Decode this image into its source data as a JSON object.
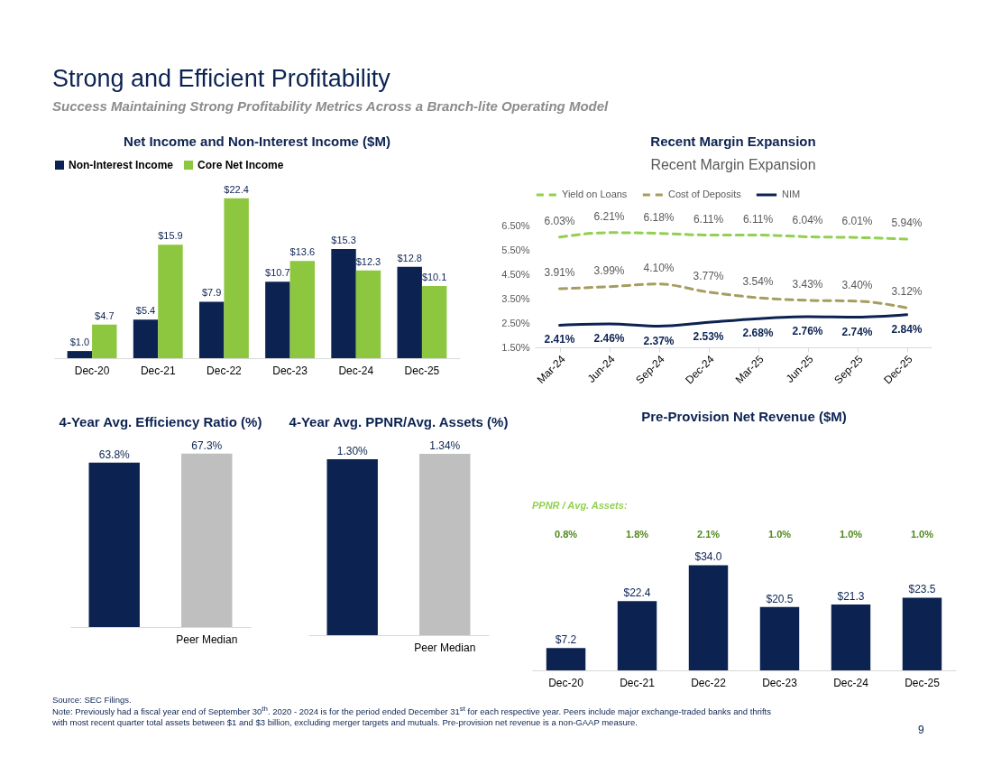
{
  "chart_data": [
    {
      "type": "other",
      "title": "Strong and Efficient Profitability",
      "subtitle": "Success Maintaining Strong Profitability Metrics Across a Branch-lite Operating Model"
    },
    {
      "type": "bar",
      "title": "Net Income and Non-Interest Income ($M)",
      "categories": [
        "Dec-20",
        "Dec-21",
        "Dec-22",
        "Dec-23",
        "Dec-24",
        "Dec-25"
      ],
      "legend": "top",
      "series": [
        {
          "name": "Non-Interest Income",
          "color": "#0c2352",
          "values": [
            1.0,
            5.4,
            7.9,
            10.7,
            15.3,
            12.8
          ],
          "value_labels": [
            "$1.0",
            "$5.4",
            "$7.9",
            "$10.7",
            "$15.3",
            "$12.8"
          ]
        },
        {
          "name": "Core Net Income",
          "color": "#8dc63f",
          "values": [
            4.7,
            15.9,
            22.4,
            13.6,
            12.3,
            10.1
          ],
          "value_labels": [
            "$4.7",
            "$15.9",
            "$22.4",
            "$13.6",
            "$12.3",
            "$10.1"
          ]
        }
      ]
    },
    {
      "type": "line",
      "title": "Recent Margin Expansion",
      "subtitle": "Recent Margin Expansion",
      "categories": [
        "Mar-24",
        "Jun-24",
        "Sep-24",
        "Dec-24",
        "Mar-25",
        "Jun-25",
        "Sep-25",
        "Dec-25"
      ],
      "legend": "top",
      "ylim": [
        1.5,
        6.5
      ],
      "yticks": [
        {
          "value": 1.5,
          "label": "1.50%"
        },
        {
          "value": 2.5,
          "label": "2.50%"
        },
        {
          "value": 3.5,
          "label": "3.50%"
        },
        {
          "value": 4.5,
          "label": "4.50%"
        },
        {
          "value": 5.5,
          "label": "5.50%"
        },
        {
          "value": 6.5,
          "label": "6.50%"
        }
      ],
      "series": [
        {
          "name": "Yield on Loans",
          "color": "#92d050",
          "line_style": "dashed",
          "values": [
            6.03,
            6.21,
            6.18,
            6.11,
            6.11,
            6.04,
            6.01,
            5.94
          ],
          "value_labels": [
            "6.03%",
            "6.21%",
            "6.18%",
            "6.11%",
            "6.11%",
            "6.04%",
            "6.01%",
            "5.94%"
          ]
        },
        {
          "name": "Cost of Deposits",
          "color": "#a69d60",
          "line_style": "dashed",
          "values": [
            3.91,
            3.99,
            4.1,
            3.77,
            3.54,
            3.43,
            3.4,
            3.12
          ],
          "value_labels": [
            "3.91%",
            "3.99%",
            "4.10%",
            "3.77%",
            "3.54%",
            "3.43%",
            "3.40%",
            "3.12%"
          ]
        },
        {
          "name": "NIM",
          "color": "#0c2352",
          "line_style": "solid",
          "values": [
            2.41,
            2.46,
            2.37,
            2.53,
            2.68,
            2.76,
            2.74,
            2.84
          ],
          "value_labels": [
            "2.41%",
            "2.46%",
            "2.37%",
            "2.53%",
            "2.68%",
            "2.76%",
            "2.74%",
            "2.84%"
          ]
        }
      ]
    },
    {
      "type": "bar",
      "title": "4-Year Avg. Efficiency Ratio (%)",
      "categories": [
        null,
        "Peer Median"
      ],
      "values": [
        63.8,
        67.3
      ],
      "colors": [
        "#0c2352",
        "#bfbfbf"
      ],
      "value_labels": [
        "63.8%",
        "67.3%"
      ]
    },
    {
      "type": "bar",
      "title": "4-Year Avg. PPNR/Avg. Assets (%)",
      "categories": [
        null,
        "Peer Median"
      ],
      "values": [
        1.3,
        1.34
      ],
      "colors": [
        "#0c2352",
        "#bfbfbf"
      ],
      "value_labels": [
        "1.30%",
        "1.34%"
      ]
    },
    {
      "type": "bar",
      "title": "Pre-Provision Net Revenue ($M)",
      "categories": [
        "Dec-20",
        "Dec-21",
        "Dec-22",
        "Dec-23",
        "Dec-24",
        "Dec-25"
      ],
      "values": [
        7.2,
        22.4,
        34.0,
        20.5,
        21.3,
        23.5
      ],
      "colors": [
        "#0c2352",
        "#0c2352",
        "#0c2352",
        "#0c2352",
        "#0c2352",
        "#0c2352"
      ],
      "value_labels": [
        "$7.2",
        "$22.4",
        "$34.0",
        "$20.5",
        "$21.3",
        "$23.5"
      ],
      "annotations": [
        "PPNR / Avg. Assets:",
        "0.8%",
        "1.8%",
        "2.1%",
        "1.0%",
        "1.0%",
        "1.0%"
      ]
    },
    {
      "type": "other",
      "annotations": [
        "Source: SEC Filings.",
        "Note: Previously had a fiscal year end of September 30$^{th}$. 2020 - 2024 is for the period ended December 31$^{st}$ for each respective year. Peers include major exchange-traded banks and thrifts with most recent quarter total assets between $1 and $3 billion, excluding merger targets and mutuals. Pre-provision net revenue is a non-GAAP measure.",
        "9"
      ]
    }
  ]
}
